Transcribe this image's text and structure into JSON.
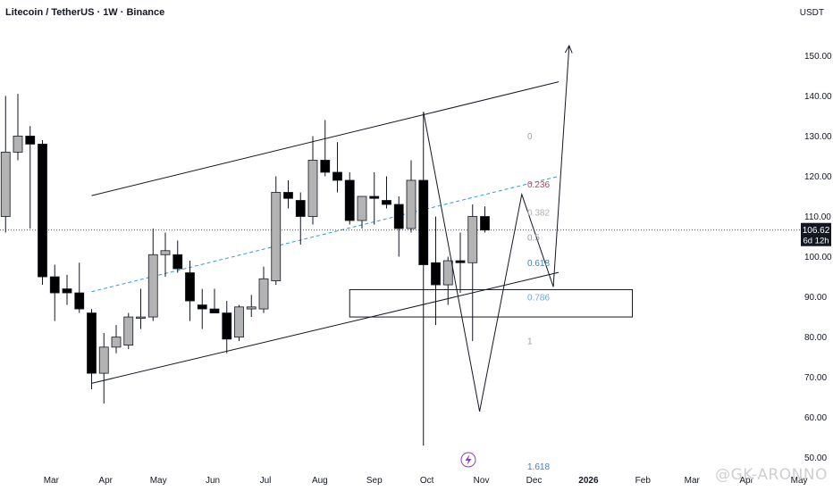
{
  "header": {
    "title": "Litecoin / TetherUS · 1W · Binance",
    "currency": "USDT"
  },
  "price_tag": {
    "value": "106.62",
    "countdown": "6d 12h"
  },
  "watermark": {
    "text": "@GK-ARONNO"
  },
  "fib_levels": [
    {
      "label": "0",
      "price": 130.0,
      "color": "#9e9e9e"
    },
    {
      "label": "0.236",
      "price": 118.0,
      "color": "#b2475b"
    },
    {
      "label": "0.382",
      "price": 111.0,
      "color": "#b0b0b0"
    },
    {
      "label": "0.5",
      "price": 104.8,
      "color": "#9e9e9e"
    },
    {
      "label": "0.618",
      "price": 98.4,
      "color": "#3f7fbf"
    },
    {
      "label": "0.786",
      "price": 89.9,
      "color": "#6aa8e0"
    },
    {
      "label": "1",
      "price": 79.0,
      "color": "#9e9e9e"
    },
    {
      "label": "1.618",
      "price": 47.8,
      "color": "#3f7fbf"
    }
  ],
  "colors": {
    "up_fill": "#b3b3b3",
    "down_fill": "#000000",
    "fib_line": "#2f9ae0",
    "price_line": "#131722"
  },
  "icons": {
    "flash": "lightning-bolt-icon"
  },
  "chart_data": {
    "type": "candlestick",
    "symbol": "Litecoin / TetherUS",
    "timeframe": "1W",
    "exchange": "Binance",
    "ylim": [
      46,
      162
    ],
    "y_ticks": [
      50,
      60,
      70,
      80,
      90,
      100,
      110,
      120,
      130,
      140,
      150
    ],
    "y_tick_labels": [
      "50.00",
      "60.00",
      "70.00",
      "80.00",
      "90.00",
      "100.00",
      "110.00",
      "120.00",
      "130.00",
      "140.00",
      "150.00"
    ],
    "x_ticks": [
      "Mar",
      "Apr",
      "May",
      "Jun",
      "Jul",
      "Aug",
      "Sep",
      "Oct",
      "Nov",
      "Dec",
      "2026",
      "Feb",
      "Mar",
      "Apr",
      "May"
    ],
    "x_tick_dates": [
      "2025-03-01",
      "2025-04-01",
      "2025-05-01",
      "2025-06-01",
      "2025-07-01",
      "2025-08-01",
      "2025-09-01",
      "2025-10-01",
      "2025-11-01",
      "2025-12-01",
      "2026-01-01",
      "2026-02-01",
      "2026-03-01",
      "2026-04-01",
      "2026-05-01"
    ],
    "last_price": 106.62,
    "candles": [
      {
        "date": "2025-02-03",
        "o": 110.0,
        "h": 140.0,
        "l": 106.0,
        "c": 126.0
      },
      {
        "date": "2025-02-10",
        "o": 126.0,
        "h": 140.5,
        "l": 124.0,
        "c": 130.0
      },
      {
        "date": "2025-02-17",
        "o": 130.0,
        "h": 132.5,
        "l": 107.0,
        "c": 128.0
      },
      {
        "date": "2025-02-24",
        "o": 128.0,
        "h": 129.0,
        "l": 93.0,
        "c": 95.0
      },
      {
        "date": "2025-03-03",
        "o": 95.0,
        "h": 98.0,
        "l": 84.0,
        "c": 91.0
      },
      {
        "date": "2025-03-10",
        "o": 92.0,
        "h": 95.5,
        "l": 88.0,
        "c": 91.0
      },
      {
        "date": "2025-03-17",
        "o": 91.0,
        "h": 98.5,
        "l": 86.0,
        "c": 87.0
      },
      {
        "date": "2025-03-24",
        "o": 86.0,
        "h": 87.0,
        "l": 67.0,
        "c": 71.0
      },
      {
        "date": "2025-03-31",
        "o": 71.0,
        "h": 81.0,
        "l": 63.5,
        "c": 77.5
      },
      {
        "date": "2025-04-07",
        "o": 77.5,
        "h": 83.0,
        "l": 76.0,
        "c": 80.0
      },
      {
        "date": "2025-04-14",
        "o": 78.0,
        "h": 86.0,
        "l": 77.0,
        "c": 85.0
      },
      {
        "date": "2025-04-21",
        "o": 85.0,
        "h": 92.0,
        "l": 82.0,
        "c": 85.0
      },
      {
        "date": "2025-04-28",
        "o": 85.0,
        "h": 107.0,
        "l": 84.0,
        "c": 100.5
      },
      {
        "date": "2025-05-05",
        "o": 100.5,
        "h": 106.0,
        "l": 95.0,
        "c": 101.5
      },
      {
        "date": "2025-05-12",
        "o": 100.5,
        "h": 104.0,
        "l": 96.0,
        "c": 97.0
      },
      {
        "date": "2025-05-19",
        "o": 96.0,
        "h": 99.0,
        "l": 84.0,
        "c": 89.0
      },
      {
        "date": "2025-05-26",
        "o": 88.0,
        "h": 92.0,
        "l": 82.0,
        "c": 87.0
      },
      {
        "date": "2025-06-02",
        "o": 87.0,
        "h": 92.0,
        "l": 86.0,
        "c": 86.0
      },
      {
        "date": "2025-06-09",
        "o": 86.0,
        "h": 89.0,
        "l": 76.0,
        "c": 79.5
      },
      {
        "date": "2025-06-16",
        "o": 80.0,
        "h": 88.0,
        "l": 79.0,
        "c": 87.5
      },
      {
        "date": "2025-06-23",
        "o": 87.0,
        "h": 90.5,
        "l": 85.0,
        "c": 87.5
      },
      {
        "date": "2025-06-30",
        "o": 87.0,
        "h": 97.5,
        "l": 86.0,
        "c": 94.5
      },
      {
        "date": "2025-07-07",
        "o": 94.0,
        "h": 120.0,
        "l": 93.0,
        "c": 116.0
      },
      {
        "date": "2025-07-14",
        "o": 116.0,
        "h": 119.0,
        "l": 112.0,
        "c": 114.5
      },
      {
        "date": "2025-07-21",
        "o": 114.0,
        "h": 116.0,
        "l": 103.0,
        "c": 110.0
      },
      {
        "date": "2025-07-28",
        "o": 110.0,
        "h": 130.0,
        "l": 108.0,
        "c": 124.0
      },
      {
        "date": "2025-08-04",
        "o": 124.0,
        "h": 134.0,
        "l": 120.0,
        "c": 121.0
      },
      {
        "date": "2025-08-11",
        "o": 121.0,
        "h": 128.5,
        "l": 116.0,
        "c": 119.0
      },
      {
        "date": "2025-08-18",
        "o": 119.0,
        "h": 121.0,
        "l": 108.0,
        "c": 109.0
      },
      {
        "date": "2025-08-25",
        "o": 109.0,
        "h": 115.0,
        "l": 107.0,
        "c": 115.0
      },
      {
        "date": "2025-09-01",
        "o": 115.0,
        "h": 121.0,
        "l": 108.0,
        "c": 114.5
      },
      {
        "date": "2025-09-08",
        "o": 114.0,
        "h": 120.0,
        "l": 112.0,
        "c": 113.0
      },
      {
        "date": "2025-09-15",
        "o": 113.0,
        "h": 115.0,
        "l": 100.0,
        "c": 107.0
      },
      {
        "date": "2025-09-22",
        "o": 107.0,
        "h": 124.0,
        "l": 106.0,
        "c": 119.0
      },
      {
        "date": "2025-09-29",
        "o": 119.0,
        "h": 136.0,
        "l": 53.0,
        "c": 98.0
      },
      {
        "date": "2025-10-06",
        "o": 98.5,
        "h": 110.0,
        "l": 83.0,
        "c": 93.0
      },
      {
        "date": "2025-10-13",
        "o": 93.0,
        "h": 100.0,
        "l": 88.0,
        "c": 99.0
      },
      {
        "date": "2025-10-20",
        "o": 99.0,
        "h": 106.0,
        "l": 91.0,
        "c": 98.5
      },
      {
        "date": "2025-10-27",
        "o": 98.5,
        "h": 113.0,
        "l": 79.0,
        "c": 110.0
      },
      {
        "date": "2025-11-03",
        "o": 110.0,
        "h": 112.5,
        "l": 106.0,
        "c": 106.62
      }
    ],
    "channel": {
      "upper": [
        {
          "date": "2025-03-24",
          "price": 115.2
        },
        {
          "date": "2025-12-15",
          "price": 143.5
        }
      ],
      "lower": [
        {
          "date": "2025-03-24",
          "price": 68.5
        },
        {
          "date": "2025-12-15",
          "price": 96.1
        }
      ]
    },
    "midline": [
      {
        "date": "2025-03-24",
        "price": 91.3
      },
      {
        "date": "2025-12-15",
        "price": 120.0
      }
    ],
    "zone": {
      "from": "2025-08-18",
      "to": "2026-01-26",
      "top": 91.8,
      "bottom": 85.0
    },
    "projection": [
      {
        "date": "2025-09-29",
        "price": 136.0
      },
      {
        "date": "2025-10-31",
        "price": 61.5
      },
      {
        "date": "2025-11-24",
        "price": 115.5
      },
      {
        "date": "2025-12-12",
        "price": 92.5
      },
      {
        "date": "2025-12-21",
        "price": 152.5
      }
    ]
  }
}
